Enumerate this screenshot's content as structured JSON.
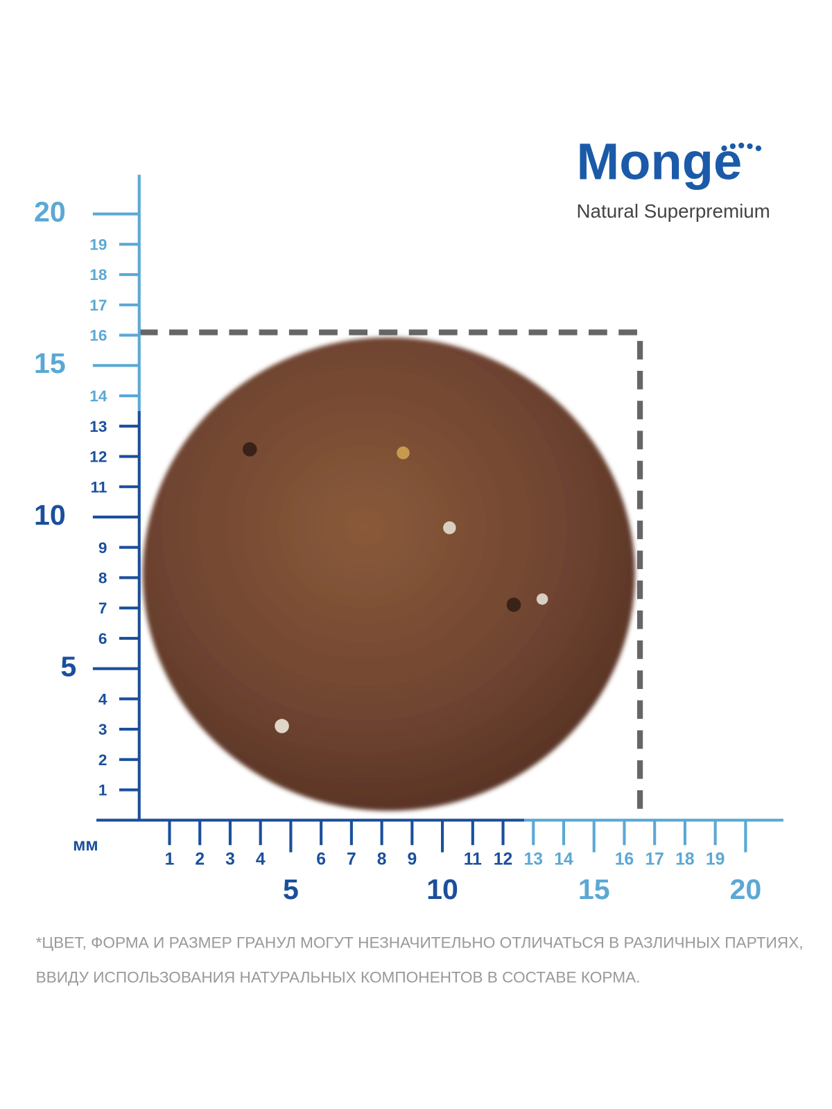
{
  "logo": {
    "brand": "Monge",
    "tagline": "Natural Superpremium"
  },
  "rulers": {
    "unit": "мм",
    "vertical": {
      "major": [
        5,
        10,
        15,
        20
      ],
      "minor": [
        1,
        2,
        3,
        4,
        6,
        7,
        8,
        9,
        11,
        12,
        13,
        14,
        16,
        17,
        18,
        19
      ]
    },
    "horizontal": {
      "major": [
        5,
        10,
        15,
        20
      ],
      "minor": [
        1,
        2,
        3,
        4,
        6,
        7,
        8,
        9,
        11,
        12,
        13,
        14,
        16,
        17,
        18,
        19
      ]
    }
  },
  "footnote": [
    "*ЦВЕТ, ФОРМА И РАЗМЕР ГРАНУЛ МОГУТ НЕЗНАЧИТЕЛЬНО ОТЛИЧАТЬСЯ В РАЗЛИЧНЫХ ПАРТИЯХ,",
    "ВВИДУ ИСПОЛЬЗОВАНИЯ НАТУРАЛЬНЫХ КОМПОНЕНТОВ В СОСТАВЕ КОРМА."
  ]
}
